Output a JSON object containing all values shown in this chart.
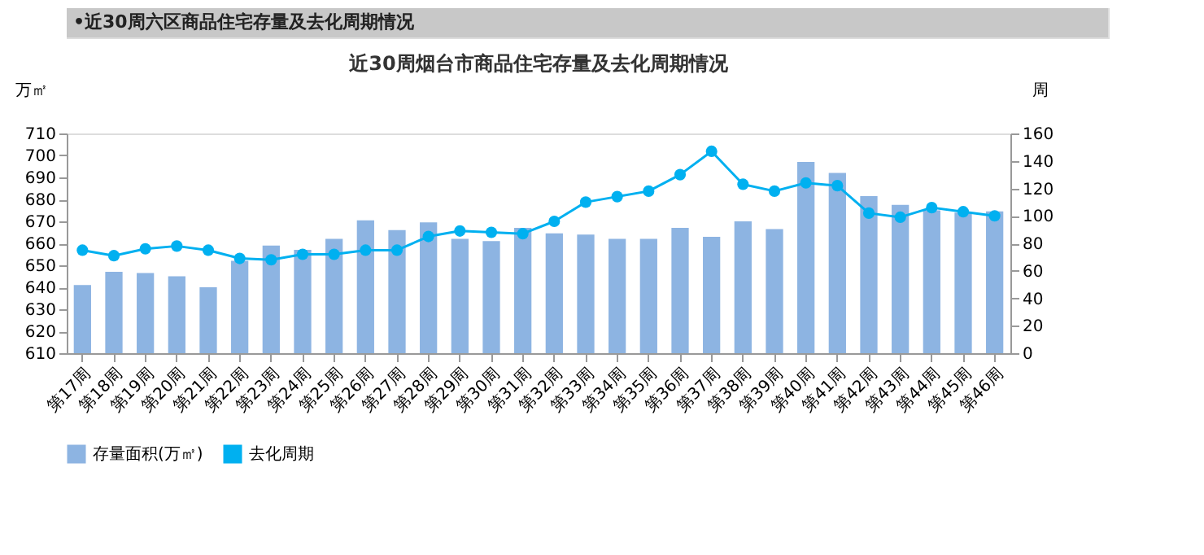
{
  "chart_data": {
    "type": "bar",
    "title": "近30周烟台市商品住宅存量及去化周期情况",
    "annotations": [
      "•近30周六区商品住宅存量及去化周期情况"
    ],
    "ylabel": "万㎡",
    "y2label": "周",
    "categories": [
      "第17周",
      "第18周",
      "第19周",
      "第20周",
      "第21周",
      "第22周",
      "第23周",
      "第24周",
      "第25周",
      "第26周",
      "第27周",
      "第28周",
      "第29周",
      "第30周",
      "第31周",
      "第32周",
      "第33周",
      "第34周",
      "第35周",
      "第36周",
      "第37周",
      "第38周",
      "第39周",
      "第40周",
      "第41周",
      "第42周",
      "第43周",
      "第44周",
      "第45周",
      "第46周"
    ],
    "series": [
      {
        "name": "存量面积(万㎡)",
        "color": "#8db4e2",
        "values": [
          641,
          647,
          646.5,
          645,
          640,
          652,
          659,
          657,
          662,
          670.5,
          666,
          669.5,
          662,
          661,
          667,
          664.5,
          664,
          662,
          662,
          667,
          663,
          670,
          666.5,
          697,
          692,
          681.5,
          677.5,
          675,
          674,
          674.5
        ]
      },
      {
        "name": "去化周期",
        "type": "line",
        "axis": "y2",
        "color": "#00b0f0",
        "marker": "circle",
        "values": [
          75,
          71,
          76,
          78,
          75,
          69,
          68,
          72,
          72,
          75,
          75,
          85,
          89,
          88,
          87,
          96,
          110,
          114,
          118,
          130,
          147,
          123,
          118,
          124,
          122,
          102,
          99,
          106,
          103,
          100
        ]
      }
    ],
    "ylim": [
      610,
      710
    ],
    "yticks": [
      610,
      620,
      630,
      640,
      650,
      660,
      670,
      680,
      690,
      700,
      710
    ],
    "y2lim": [
      0,
      160
    ],
    "y2ticks": [
      0,
      20,
      40,
      60,
      80,
      100,
      120,
      140,
      160
    ],
    "grid": false,
    "legend": "bottom"
  }
}
